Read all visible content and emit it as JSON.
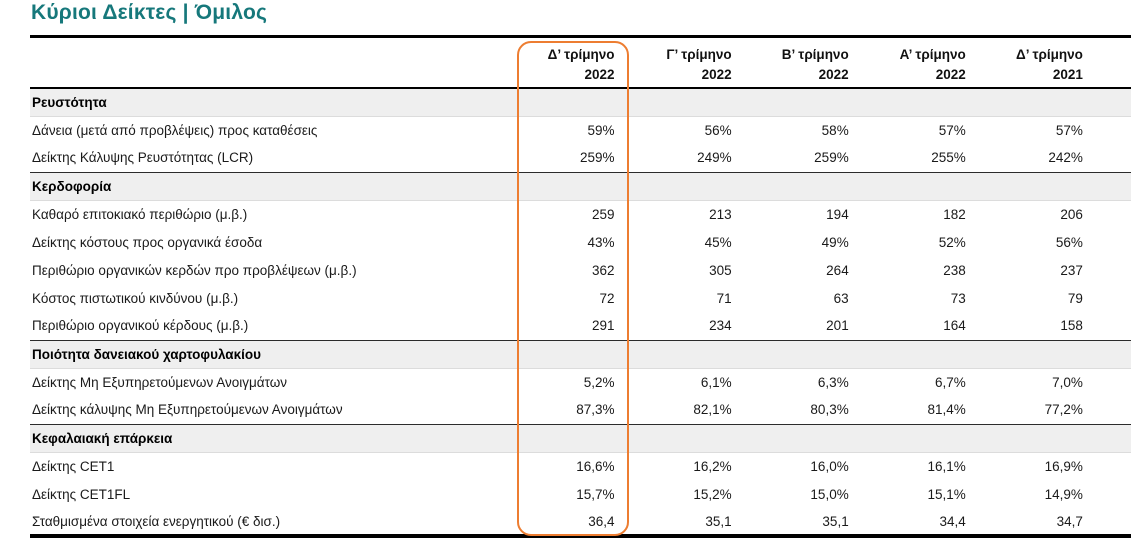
{
  "page": {
    "title": "Κύριοι Δείκτες | Όμιλος"
  },
  "colors": {
    "title_teal": "#16787B",
    "highlight_orange": "#ED7D31",
    "section_row_bg": "#EFEFEF",
    "rule_black": "#000000"
  },
  "table": {
    "column_headers": [
      {
        "period": "Δ’ τρίμηνο",
        "year": "2022",
        "highlighted": true
      },
      {
        "period": "Γ’ τρίμηνο",
        "year": "2022",
        "highlighted": false
      },
      {
        "period": "Β’ τρίμηνο",
        "year": "2022",
        "highlighted": false
      },
      {
        "period": "Α’ τρίμηνο",
        "year": "2022",
        "highlighted": false
      },
      {
        "period": "Δ’ τρίμηνο",
        "year": "2021",
        "highlighted": false
      }
    ],
    "sections": [
      {
        "label": "Ρευστότητα",
        "rows": [
          {
            "label": "Δάνεια (μετά από προβλέψεις) προς καταθέσεις",
            "values": [
              "59%",
              "56%",
              "58%",
              "57%",
              "57%"
            ]
          },
          {
            "label": "Δείκτης Κάλυψης Ρευστότητας (LCR)",
            "values": [
              "259%",
              "249%",
              "259%",
              "255%",
              "242%"
            ]
          }
        ]
      },
      {
        "label": "Κερδοφορία",
        "rows": [
          {
            "label": "Καθαρό επιτοκιακό περιθώριο (μ.β.)",
            "values": [
              "259",
              "213",
              "194",
              "182",
              "206"
            ]
          },
          {
            "label": "Δείκτης κόστους προς οργανικά έσοδα",
            "values": [
              "43%",
              "45%",
              "49%",
              "52%",
              "56%"
            ]
          },
          {
            "label": "Περιθώριο οργανικών κερδών προ προβλέψεων (μ.β.)",
            "values": [
              "362",
              "305",
              "264",
              "238",
              "237"
            ]
          },
          {
            "label": "Κόστος πιστωτικού κινδύνου (μ.β.)",
            "values": [
              "72",
              "71",
              "63",
              "73",
              "79"
            ]
          },
          {
            "label": "Περιθώριο οργανικού κέρδους (μ.β.)",
            "values": [
              "291",
              "234",
              "201",
              "164",
              "158"
            ]
          }
        ]
      },
      {
        "label": "Ποιότητα δανειακού χαρτοφυλακίου",
        "rows": [
          {
            "label": "Δείκτης Μη Εξυπηρετούμενων Ανοιγμάτων",
            "values": [
              "5,2%",
              "6,1%",
              "6,3%",
              "6,7%",
              "7,0%"
            ]
          },
          {
            "label": "Δείκτης κάλυψης Μη Εξυπηρετούμενων Ανοιγμάτων",
            "values": [
              "87,3%",
              "82,1%",
              "80,3%",
              "81,4%",
              "77,2%"
            ]
          }
        ]
      },
      {
        "label": "Κεφαλαιακή επάρκεια",
        "rows": [
          {
            "label": "Δείκτης CET1",
            "values": [
              "16,6%",
              "16,2%",
              "16,0%",
              "16,1%",
              "16,9%"
            ]
          },
          {
            "label": "Δείκτης CET1FL",
            "values": [
              "15,7%",
              "15,2%",
              "15,0%",
              "15,1%",
              "14,9%"
            ]
          },
          {
            "label": "Σταθμισμένα στοιχεία ενεργητικού (€ δισ.)",
            "values": [
              "36,4",
              "35,1",
              "35,1",
              "34,4",
              "34,7"
            ]
          }
        ]
      }
    ]
  }
}
